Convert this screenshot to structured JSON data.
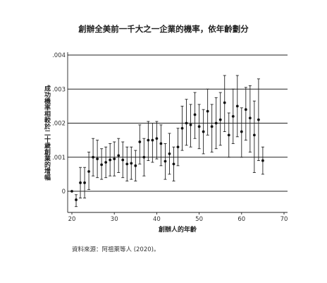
{
  "chart_data": {
    "type": "scatter",
    "title": "創辦全美前一千大之一企業的機率，依年齡劃分",
    "xlabel": "創辦人的年齡",
    "ylabel": "成功機率相較於二十歲創業的增幅",
    "xlim": [
      20,
      70
    ],
    "ylim": [
      -0.0005,
      0.004
    ],
    "x_ticks": [
      "20",
      "30",
      "40",
      "50",
      "60",
      "70"
    ],
    "y_ticks": [
      ".004",
      ".003",
      ".002",
      ".001",
      "0"
    ],
    "grid": "horizontal",
    "source": "資料來源：阿祖萊等人 (2020)。",
    "series": [
      {
        "x": [
          20,
          21,
          22,
          23,
          24,
          25,
          26,
          27,
          28,
          29,
          30,
          31,
          32,
          33,
          34,
          35,
          36,
          37,
          38,
          39,
          40,
          41,
          42,
          43,
          44,
          45,
          46,
          47,
          48,
          49,
          50,
          51,
          52,
          53,
          54,
          55,
          56,
          57,
          58,
          59,
          60,
          61,
          62,
          63,
          64,
          65
        ],
        "y": [
          0.0,
          -0.00025,
          0.00025,
          0.00025,
          0.00058,
          0.001,
          0.00095,
          0.00078,
          0.00085,
          0.00092,
          0.00095,
          0.00105,
          0.00092,
          0.0008,
          0.00082,
          0.00075,
          0.00145,
          0.001,
          0.0015,
          0.0015,
          0.00155,
          0.0014,
          0.00088,
          0.0011,
          0.0008,
          0.0013,
          0.00185,
          0.002,
          0.00195,
          0.00225,
          0.0019,
          0.00175,
          0.00235,
          0.0019,
          0.002,
          0.0021,
          0.0026,
          0.00165,
          0.0022,
          0.0025,
          0.00175,
          0.0024,
          0.00215,
          0.00165,
          0.0021,
          0.0009
        ],
        "lo": [
          0.0,
          -0.00045,
          -0.0002,
          -0.0002,
          5e-05,
          0.00045,
          0.0004,
          0.00035,
          0.0004,
          0.00045,
          0.00045,
          0.00055,
          0.0004,
          0.0003,
          0.00035,
          0.0003,
          0.0008,
          0.00045,
          0.0009,
          0.00085,
          0.00095,
          0.00075,
          0.00035,
          0.0005,
          0.0003,
          0.00075,
          0.0012,
          0.00135,
          0.0013,
          0.00155,
          0.00125,
          0.0011,
          0.00165,
          0.00115,
          0.00125,
          0.00135,
          0.00175,
          0.001,
          0.0014,
          0.0016,
          0.001,
          0.0015,
          0.00115,
          0.00055,
          0.0009,
          0.0005
        ],
        "hi": [
          0.0,
          -0.0001,
          0.0007,
          0.0007,
          0.00115,
          0.00155,
          0.0015,
          0.00125,
          0.0013,
          0.0014,
          0.00145,
          0.00155,
          0.00145,
          0.0013,
          0.0013,
          0.0012,
          0.00195,
          0.00155,
          0.00205,
          0.002,
          0.00205,
          0.00195,
          0.0014,
          0.0017,
          0.0013,
          0.00185,
          0.0025,
          0.0027,
          0.00255,
          0.0029,
          0.00255,
          0.0024,
          0.003,
          0.00255,
          0.00275,
          0.0029,
          0.0034,
          0.0023,
          0.003,
          0.0034,
          0.00245,
          0.00305,
          0.0031,
          0.00265,
          0.0033,
          0.0013
        ]
      }
    ]
  }
}
